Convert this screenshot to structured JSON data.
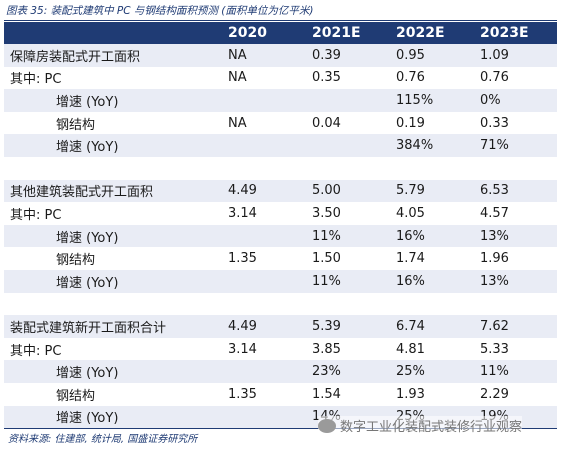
{
  "title": "图表 35: 装配式建筑中 PC 与钢结构面积预测 (面积单位为亿平米)",
  "header": [
    "",
    "2020",
    "2021E",
    "2022E",
    "2023E"
  ],
  "rows": [
    {
      "label": "保障房装配式开工面积",
      "v": [
        "NA",
        "0.39",
        "0.95",
        "1.09"
      ]
    },
    {
      "label": "其中: PC",
      "v": [
        "NA",
        "0.35",
        "0.76",
        "0.76"
      ]
    },
    {
      "label": "增速 (YoY)",
      "v": [
        "",
        "",
        "115%",
        "0%"
      ]
    },
    {
      "label": "钢结构",
      "v": [
        "NA",
        "0.04",
        "0.19",
        "0.33"
      ]
    },
    {
      "label": "增速 (YoY)",
      "v": [
        "",
        "",
        "384%",
        "71%"
      ]
    },
    {
      "label": "",
      "v": [
        "",
        "",
        "",
        ""
      ]
    },
    {
      "label": "其他建筑装配式开工面积",
      "v": [
        "4.49",
        "5.00",
        "5.79",
        "6.53"
      ]
    },
    {
      "label": "其中: PC",
      "v": [
        "3.14",
        "3.50",
        "4.05",
        "4.57"
      ]
    },
    {
      "label": "增速 (YoY)",
      "v": [
        "",
        "11%",
        "16%",
        "13%"
      ]
    },
    {
      "label": "钢结构",
      "v": [
        "1.35",
        "1.50",
        "1.74",
        "1.96"
      ]
    },
    {
      "label": "增速 (YoY)",
      "v": [
        "",
        "11%",
        "16%",
        "13%"
      ]
    },
    {
      "label": "",
      "v": [
        "",
        "",
        "",
        ""
      ]
    },
    {
      "label": "装配式建筑新开工面积合计",
      "v": [
        "4.49",
        "5.39",
        "6.74",
        "7.62"
      ]
    },
    {
      "label": "其中: PC",
      "v": [
        "3.14",
        "3.85",
        "4.81",
        "5.33"
      ]
    },
    {
      "label": "增速 (YoY)",
      "v": [
        "",
        "23%",
        "25%",
        "11%"
      ]
    },
    {
      "label": "钢结构",
      "v": [
        "1.35",
        "1.54",
        "1.93",
        "2.29"
      ]
    },
    {
      "label": "增速 (YoY)",
      "v": [
        "",
        "14%",
        "25%",
        "19%"
      ]
    }
  ],
  "source": "资料来源: 住建部, 统计局, 国盛证券研究所",
  "watermark": "数字工业化装配式装修行业观察"
}
